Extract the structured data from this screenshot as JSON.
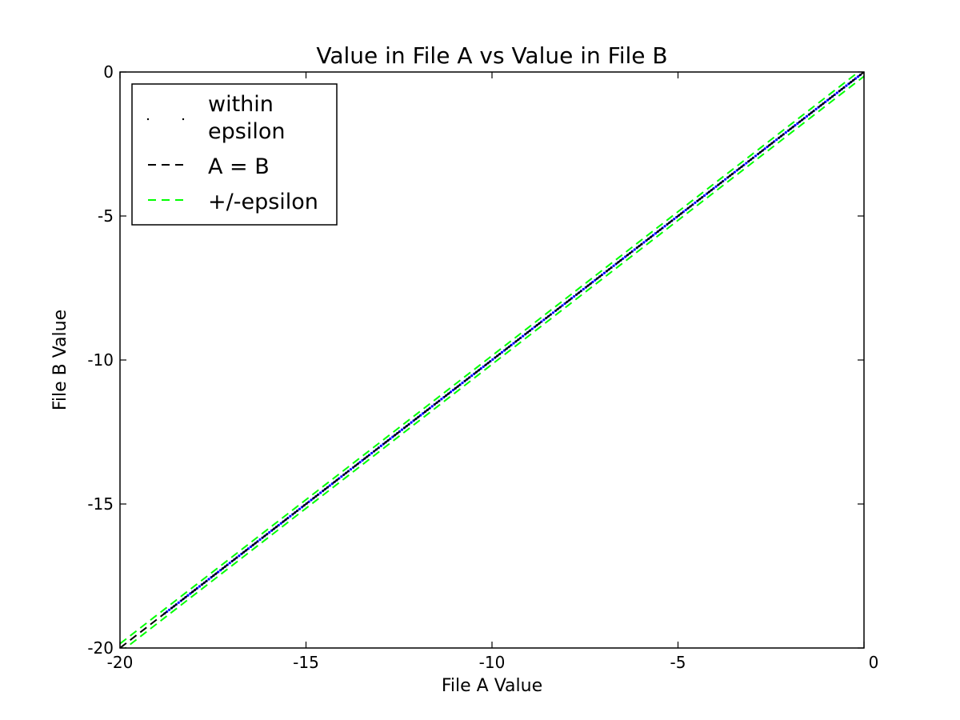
{
  "chart_data": {
    "type": "scatter",
    "title": "Value in File A vs Value in File B",
    "xlabel": "File A Value",
    "ylabel": "File B Value",
    "xlim": [
      -20,
      0
    ],
    "ylim": [
      -20,
      0
    ],
    "xticks": [
      "-20",
      "-15",
      "-10",
      "-5",
      "0"
    ],
    "xtick_values": [
      -20,
      -15,
      -10,
      -5,
      0
    ],
    "yticks": [
      "0",
      "-5",
      "-10",
      "-15",
      "-20"
    ],
    "ytick_values": [
      0,
      -5,
      -10,
      -15,
      -20
    ],
    "grid": false,
    "legend_position": "upper-left",
    "legend": [
      {
        "label_lines": [
          "within",
          "epsilon"
        ],
        "style": "points",
        "color": "#000000"
      },
      {
        "label_lines": [
          "A = B"
        ],
        "style": "dashed",
        "color": "#000000"
      },
      {
        "label_lines": [
          "+/-epsilon"
        ],
        "style": "dashed",
        "color": "#00ff00"
      }
    ],
    "series": [
      {
        "name": "within epsilon",
        "style": "points",
        "color": "#0000ff",
        "x_range": [
          -18.8,
          -0.1
        ],
        "y_range": [
          -18.8,
          -0.1
        ]
      },
      {
        "name": "A = B",
        "style": "dashed",
        "color": "#000000",
        "x": [
          -20,
          0
        ],
        "y": [
          -20,
          0
        ]
      },
      {
        "name": "+/-epsilon",
        "style": "dashed",
        "color": "#00ff00",
        "lines": [
          {
            "x": [
              -20,
              0
            ],
            "y": [
              -19.85,
              0.15
            ]
          },
          {
            "x": [
              -20,
              0
            ],
            "y": [
              -20.15,
              -0.15
            ]
          }
        ]
      }
    ]
  }
}
